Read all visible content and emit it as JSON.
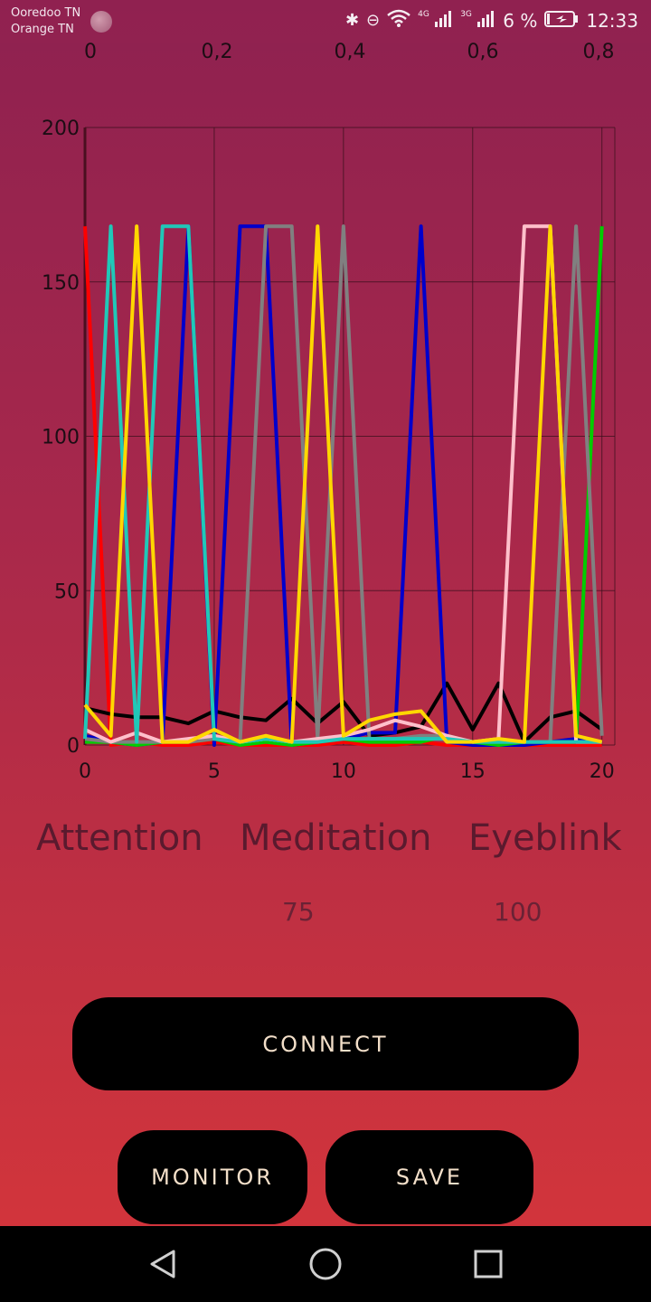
{
  "status_bar": {
    "carrier_1": "Ooredoo TN",
    "carrier_2": "Orange TN",
    "net_4g": "4G",
    "net_3g": "3G",
    "battery": "6 %",
    "time": "12:33",
    "icons": [
      "bluetooth-icon",
      "do-not-disturb-icon",
      "wifi-icon",
      "signal-4g-icon",
      "signal-3g-icon",
      "battery-charging-icon"
    ]
  },
  "chart_data": {
    "type": "line",
    "top_ticks": [
      "0",
      "0,2",
      "0,4",
      "0,6",
      "0,8"
    ],
    "x_ticks": [
      "0",
      "5",
      "10",
      "15",
      "20"
    ],
    "y_ticks": [
      "0",
      "50",
      "100",
      "150",
      "200"
    ],
    "xlim": [
      0,
      20.5
    ],
    "ylim": [
      0,
      200
    ],
    "grid": true,
    "x": [
      0,
      1,
      2,
      3,
      4,
      5,
      6,
      7,
      8,
      9,
      10,
      11,
      12,
      13,
      14,
      15,
      16,
      17,
      18,
      19,
      20
    ],
    "series": [
      {
        "color": "#ff0000",
        "values": [
          168,
          0,
          1,
          0,
          0,
          1,
          0,
          0,
          0,
          0,
          1,
          0,
          0,
          1,
          0,
          0,
          0,
          0,
          0,
          0,
          0
        ]
      },
      {
        "color": "#000000",
        "values": [
          12,
          10,
          9,
          9,
          7,
          11,
          9,
          8,
          15,
          7,
          14,
          3,
          4,
          6,
          20,
          5,
          20,
          1,
          9,
          11,
          5
        ]
      },
      {
        "color": "#0000cc",
        "values": [
          3,
          1,
          0,
          1,
          168,
          0,
          168,
          168,
          0,
          1,
          2,
          4,
          4,
          168,
          1,
          0,
          0,
          0,
          1,
          2,
          1
        ]
      },
      {
        "color": "#00cc00",
        "values": [
          1,
          1,
          0,
          1,
          1,
          2,
          0,
          1,
          0,
          1,
          2,
          1,
          1,
          1,
          3,
          1,
          0,
          1,
          1,
          1,
          168
        ]
      },
      {
        "color": "#808080",
        "values": [
          2,
          1,
          1,
          1,
          1,
          2,
          1,
          168,
          168,
          2,
          168,
          2,
          2,
          3,
          3,
          1,
          1,
          1,
          1,
          168,
          3
        ]
      },
      {
        "color": "#ffc0cb",
        "values": [
          5,
          1,
          4,
          1,
          2,
          3,
          1,
          2,
          1,
          2,
          3,
          5,
          8,
          6,
          3,
          1,
          2,
          168,
          168,
          1,
          1
        ]
      },
      {
        "color": "#20c8b8",
        "values": [
          2,
          168,
          1,
          168,
          168,
          2,
          1,
          2,
          1,
          1,
          2,
          2,
          2,
          2,
          2,
          1,
          1,
          1,
          1,
          1,
          1
        ]
      },
      {
        "color": "#ffd700",
        "values": [
          13,
          3,
          168,
          1,
          1,
          5,
          1,
          3,
          1,
          168,
          3,
          8,
          10,
          11,
          1,
          1,
          2,
          1,
          168,
          3,
          1
        ]
      }
    ]
  },
  "stats": {
    "attention_label": "Attention",
    "meditation_label": "Meditation",
    "eyeblink_label": "Eyeblink",
    "meditation_value": "75",
    "eyeblink_value": "100"
  },
  "buttons": {
    "connect": "CONNECT",
    "monitor": "MONITOR",
    "save": "SAVE"
  },
  "nav": {
    "icons": [
      "back-icon",
      "home-icon",
      "recents-icon"
    ]
  }
}
